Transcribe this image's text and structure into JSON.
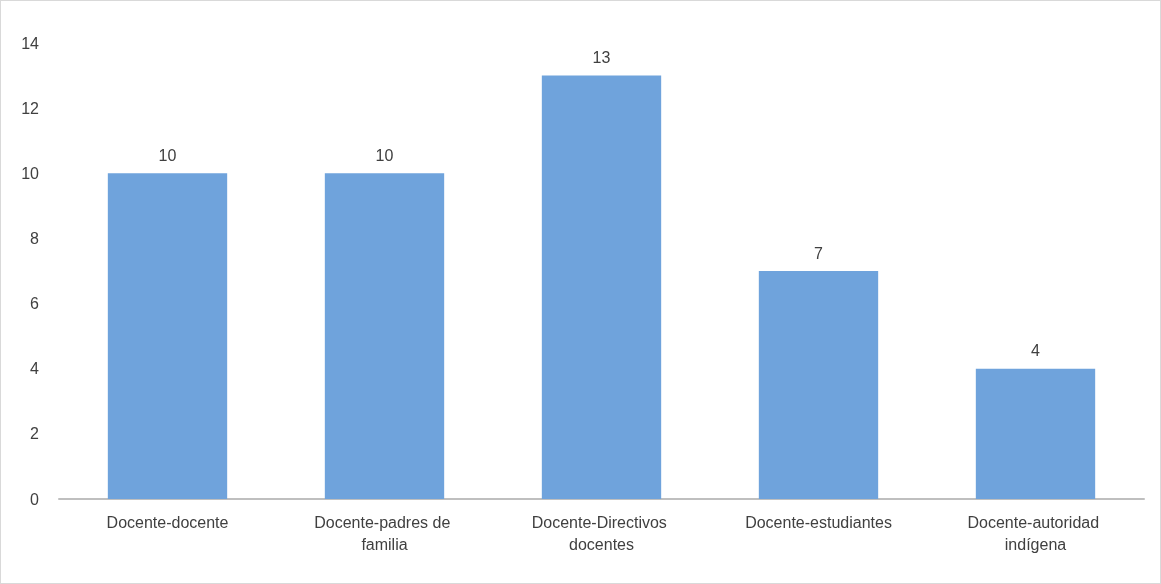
{
  "chart_data": {
    "type": "bar",
    "categories": [
      "Docente-docente",
      "Docente-padres de familia",
      "Docente-Directivos docentes",
      "Docente-estudiantes",
      "Docente-autoridad indígena"
    ],
    "values": [
      10,
      10,
      13,
      7,
      4
    ],
    "color": "#6fa3dc",
    "ylim": [
      0,
      14
    ],
    "yticks": [
      0,
      2,
      4,
      6,
      8,
      10,
      12,
      14
    ],
    "grid": false,
    "data_labels": true
  }
}
